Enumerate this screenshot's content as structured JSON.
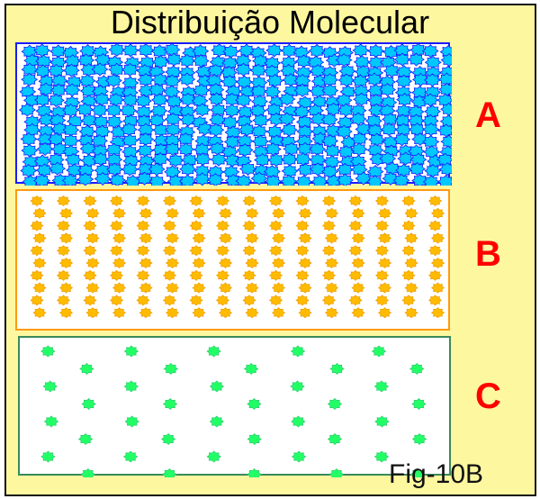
{
  "title": "Distribuição Molecular",
  "panels": [
    {
      "label": "A",
      "molecule_color": "#00c8ff",
      "outline_color": "#1a1aff",
      "state": "dense"
    },
    {
      "label": "B",
      "molecule_color": "#ffbb00",
      "outline_color": "#ff9a10",
      "state": "medium"
    },
    {
      "label": "C",
      "molecule_color": "#22ff66",
      "outline_color": "#3a8a5a",
      "state": "sparse"
    }
  ],
  "figure_label": "Fig-10B",
  "colors": {
    "background": "#fdf7a0",
    "label": "#ff0000"
  }
}
